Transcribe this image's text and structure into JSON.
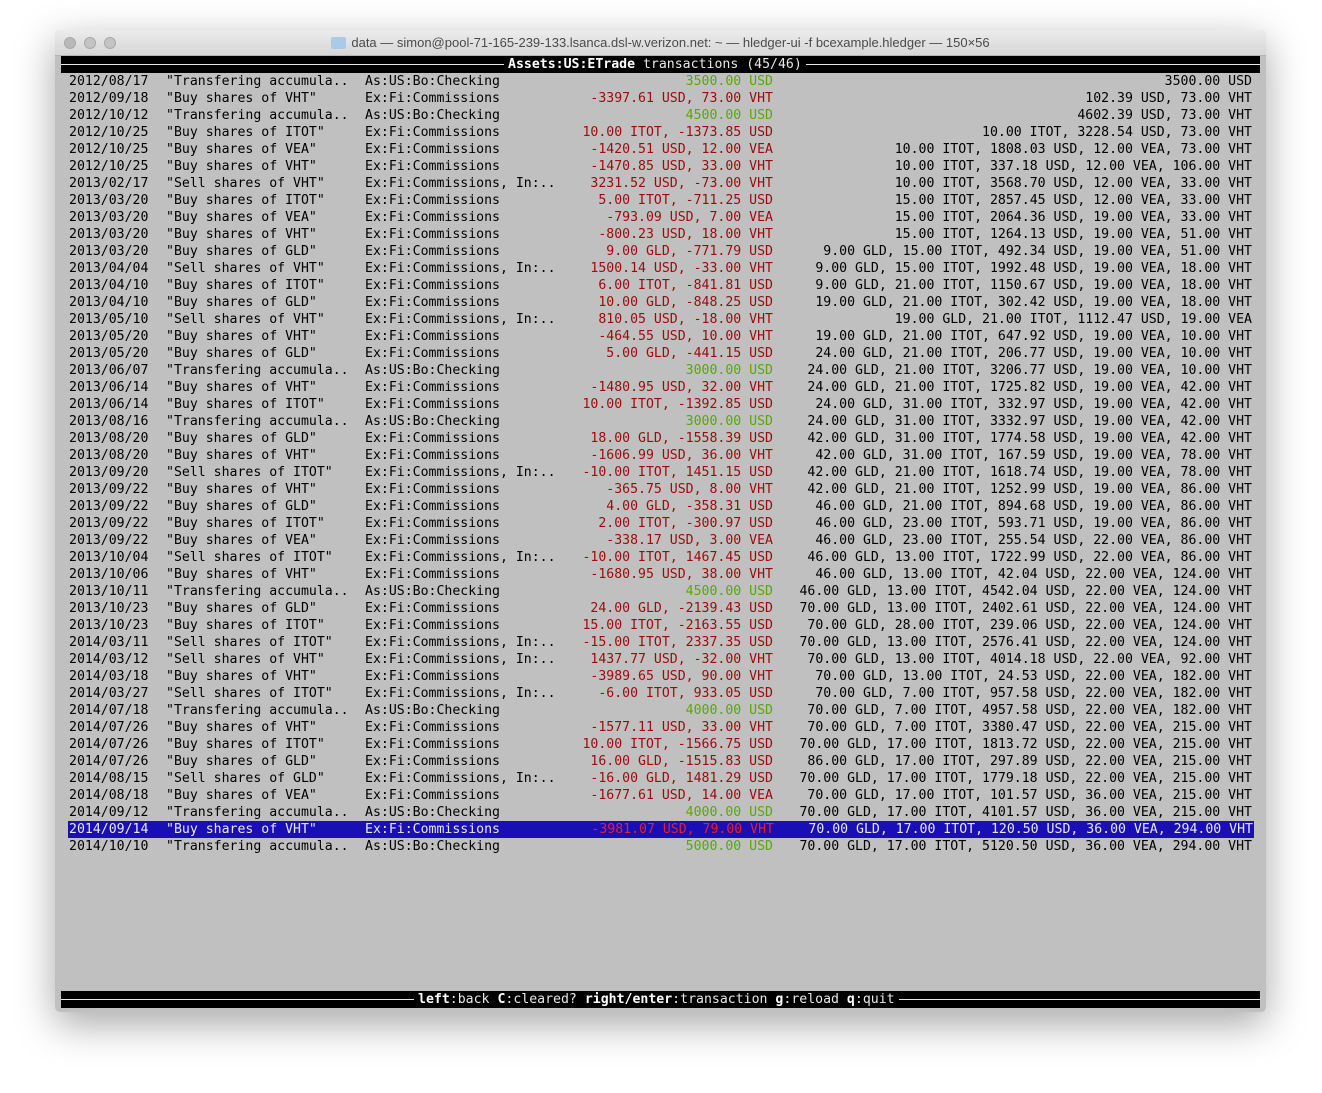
{
  "window": {
    "title": "data — simon@pool-71-165-239-133.lsanca.dsl-w.verizon.net: ~ — hledger-ui -f bcexample.hledger — 150×56"
  },
  "header": {
    "account": "Assets:US:ETrade",
    "rest": " transactions (45/46)"
  },
  "colors": {
    "negative": "#9c0a0a",
    "positive": "#5aa800",
    "selection": "#1a0fb4"
  },
  "selected_index": 44,
  "rows": [
    {
      "date": "2012/08/17",
      "desc": "\"Transfering accumula..",
      "acct": "As:US:Bo:Checking",
      "amt": "3500.00 USD",
      "sign": "green",
      "bal": "3500.00 USD"
    },
    {
      "date": "2012/09/18",
      "desc": "\"Buy shares of VHT\"",
      "acct": "Ex:Fi:Commissions",
      "amt": "-3397.61 USD, 73.00 VHT",
      "sign": "red",
      "bal": "102.39 USD, 73.00 VHT"
    },
    {
      "date": "2012/10/12",
      "desc": "\"Transfering accumula..",
      "acct": "As:US:Bo:Checking",
      "amt": "4500.00 USD",
      "sign": "green",
      "bal": "4602.39 USD, 73.00 VHT"
    },
    {
      "date": "2012/10/25",
      "desc": "\"Buy shares of ITOT\"",
      "acct": "Ex:Fi:Commissions",
      "amt": "10.00 ITOT, -1373.85 USD",
      "sign": "red",
      "bal": "10.00 ITOT, 3228.54 USD, 73.00 VHT"
    },
    {
      "date": "2012/10/25",
      "desc": "\"Buy shares of VEA\"",
      "acct": "Ex:Fi:Commissions",
      "amt": "-1420.51 USD, 12.00 VEA",
      "sign": "red",
      "bal": "10.00 ITOT, 1808.03 USD, 12.00 VEA, 73.00 VHT"
    },
    {
      "date": "2012/10/25",
      "desc": "\"Buy shares of VHT\"",
      "acct": "Ex:Fi:Commissions",
      "amt": "-1470.85 USD, 33.00 VHT",
      "sign": "red",
      "bal": "10.00 ITOT, 337.18 USD, 12.00 VEA, 106.00 VHT"
    },
    {
      "date": "2013/02/17",
      "desc": "\"Sell shares of VHT\"",
      "acct": "Ex:Fi:Commissions, In:..",
      "amt": "3231.52 USD, -73.00 VHT",
      "sign": "red",
      "bal": "10.00 ITOT, 3568.70 USD, 12.00 VEA, 33.00 VHT"
    },
    {
      "date": "2013/03/20",
      "desc": "\"Buy shares of ITOT\"",
      "acct": "Ex:Fi:Commissions",
      "amt": "5.00 ITOT, -711.25 USD",
      "sign": "red",
      "bal": "15.00 ITOT, 2857.45 USD, 12.00 VEA, 33.00 VHT"
    },
    {
      "date": "2013/03/20",
      "desc": "\"Buy shares of VEA\"",
      "acct": "Ex:Fi:Commissions",
      "amt": "-793.09 USD, 7.00 VEA",
      "sign": "red",
      "bal": "15.00 ITOT, 2064.36 USD, 19.00 VEA, 33.00 VHT"
    },
    {
      "date": "2013/03/20",
      "desc": "\"Buy shares of VHT\"",
      "acct": "Ex:Fi:Commissions",
      "amt": "-800.23 USD, 18.00 VHT",
      "sign": "red",
      "bal": "15.00 ITOT, 1264.13 USD, 19.00 VEA, 51.00 VHT"
    },
    {
      "date": "2013/03/20",
      "desc": "\"Buy shares of GLD\"",
      "acct": "Ex:Fi:Commissions",
      "amt": "9.00 GLD, -771.79 USD",
      "sign": "red",
      "bal": "9.00 GLD, 15.00 ITOT, 492.34 USD, 19.00 VEA, 51.00 VHT"
    },
    {
      "date": "2013/04/04",
      "desc": "\"Sell shares of VHT\"",
      "acct": "Ex:Fi:Commissions, In:..",
      "amt": "1500.14 USD, -33.00 VHT",
      "sign": "red",
      "bal": "9.00 GLD, 15.00 ITOT, 1992.48 USD, 19.00 VEA, 18.00 VHT"
    },
    {
      "date": "2013/04/10",
      "desc": "\"Buy shares of ITOT\"",
      "acct": "Ex:Fi:Commissions",
      "amt": "6.00 ITOT, -841.81 USD",
      "sign": "red",
      "bal": "9.00 GLD, 21.00 ITOT, 1150.67 USD, 19.00 VEA, 18.00 VHT"
    },
    {
      "date": "2013/04/10",
      "desc": "\"Buy shares of GLD\"",
      "acct": "Ex:Fi:Commissions",
      "amt": "10.00 GLD, -848.25 USD",
      "sign": "red",
      "bal": "19.00 GLD, 21.00 ITOT, 302.42 USD, 19.00 VEA, 18.00 VHT"
    },
    {
      "date": "2013/05/10",
      "desc": "\"Sell shares of VHT\"",
      "acct": "Ex:Fi:Commissions, In:..",
      "amt": "810.05 USD, -18.00 VHT",
      "sign": "red",
      "bal": "19.00 GLD, 21.00 ITOT, 1112.47 USD, 19.00 VEA"
    },
    {
      "date": "2013/05/20",
      "desc": "\"Buy shares of VHT\"",
      "acct": "Ex:Fi:Commissions",
      "amt": "-464.55 USD, 10.00 VHT",
      "sign": "red",
      "bal": "19.00 GLD, 21.00 ITOT, 647.92 USD, 19.00 VEA, 10.00 VHT"
    },
    {
      "date": "2013/05/20",
      "desc": "\"Buy shares of GLD\"",
      "acct": "Ex:Fi:Commissions",
      "amt": "5.00 GLD, -441.15 USD",
      "sign": "red",
      "bal": "24.00 GLD, 21.00 ITOT, 206.77 USD, 19.00 VEA, 10.00 VHT"
    },
    {
      "date": "2013/06/07",
      "desc": "\"Transfering accumula..",
      "acct": "As:US:Bo:Checking",
      "amt": "3000.00 USD",
      "sign": "green",
      "bal": "24.00 GLD, 21.00 ITOT, 3206.77 USD, 19.00 VEA, 10.00 VHT"
    },
    {
      "date": "2013/06/14",
      "desc": "\"Buy shares of VHT\"",
      "acct": "Ex:Fi:Commissions",
      "amt": "-1480.95 USD, 32.00 VHT",
      "sign": "red",
      "bal": "24.00 GLD, 21.00 ITOT, 1725.82 USD, 19.00 VEA, 42.00 VHT"
    },
    {
      "date": "2013/06/14",
      "desc": "\"Buy shares of ITOT\"",
      "acct": "Ex:Fi:Commissions",
      "amt": "10.00 ITOT, -1392.85 USD",
      "sign": "red",
      "bal": "24.00 GLD, 31.00 ITOT, 332.97 USD, 19.00 VEA, 42.00 VHT"
    },
    {
      "date": "2013/08/16",
      "desc": "\"Transfering accumula..",
      "acct": "As:US:Bo:Checking",
      "amt": "3000.00 USD",
      "sign": "green",
      "bal": "24.00 GLD, 31.00 ITOT, 3332.97 USD, 19.00 VEA, 42.00 VHT"
    },
    {
      "date": "2013/08/20",
      "desc": "\"Buy shares of GLD\"",
      "acct": "Ex:Fi:Commissions",
      "amt": "18.00 GLD, -1558.39 USD",
      "sign": "red",
      "bal": "42.00 GLD, 31.00 ITOT, 1774.58 USD, 19.00 VEA, 42.00 VHT"
    },
    {
      "date": "2013/08/20",
      "desc": "\"Buy shares of VHT\"",
      "acct": "Ex:Fi:Commissions",
      "amt": "-1606.99 USD, 36.00 VHT",
      "sign": "red",
      "bal": "42.00 GLD, 31.00 ITOT, 167.59 USD, 19.00 VEA, 78.00 VHT"
    },
    {
      "date": "2013/09/20",
      "desc": "\"Sell shares of ITOT\"",
      "acct": "Ex:Fi:Commissions, In:..",
      "amt": "-10.00 ITOT, 1451.15 USD",
      "sign": "red",
      "bal": "42.00 GLD, 21.00 ITOT, 1618.74 USD, 19.00 VEA, 78.00 VHT"
    },
    {
      "date": "2013/09/22",
      "desc": "\"Buy shares of VHT\"",
      "acct": "Ex:Fi:Commissions",
      "amt": "-365.75 USD, 8.00 VHT",
      "sign": "red",
      "bal": "42.00 GLD, 21.00 ITOT, 1252.99 USD, 19.00 VEA, 86.00 VHT"
    },
    {
      "date": "2013/09/22",
      "desc": "\"Buy shares of GLD\"",
      "acct": "Ex:Fi:Commissions",
      "amt": "4.00 GLD, -358.31 USD",
      "sign": "red",
      "bal": "46.00 GLD, 21.00 ITOT, 894.68 USD, 19.00 VEA, 86.00 VHT"
    },
    {
      "date": "2013/09/22",
      "desc": "\"Buy shares of ITOT\"",
      "acct": "Ex:Fi:Commissions",
      "amt": "2.00 ITOT, -300.97 USD",
      "sign": "red",
      "bal": "46.00 GLD, 23.00 ITOT, 593.71 USD, 19.00 VEA, 86.00 VHT"
    },
    {
      "date": "2013/09/22",
      "desc": "\"Buy shares of VEA\"",
      "acct": "Ex:Fi:Commissions",
      "amt": "-338.17 USD, 3.00 VEA",
      "sign": "red",
      "bal": "46.00 GLD, 23.00 ITOT, 255.54 USD, 22.00 VEA, 86.00 VHT"
    },
    {
      "date": "2013/10/04",
      "desc": "\"Sell shares of ITOT\"",
      "acct": "Ex:Fi:Commissions, In:..",
      "amt": "-10.00 ITOT, 1467.45 USD",
      "sign": "red",
      "bal": "46.00 GLD, 13.00 ITOT, 1722.99 USD, 22.00 VEA, 86.00 VHT"
    },
    {
      "date": "2013/10/06",
      "desc": "\"Buy shares of VHT\"",
      "acct": "Ex:Fi:Commissions",
      "amt": "-1680.95 USD, 38.00 VHT",
      "sign": "red",
      "bal": "46.00 GLD, 13.00 ITOT, 42.04 USD, 22.00 VEA, 124.00 VHT"
    },
    {
      "date": "2013/10/11",
      "desc": "\"Transfering accumula..",
      "acct": "As:US:Bo:Checking",
      "amt": "4500.00 USD",
      "sign": "green",
      "bal": "46.00 GLD, 13.00 ITOT, 4542.04 USD, 22.00 VEA, 124.00 VHT"
    },
    {
      "date": "2013/10/23",
      "desc": "\"Buy shares of GLD\"",
      "acct": "Ex:Fi:Commissions",
      "amt": "24.00 GLD, -2139.43 USD",
      "sign": "red",
      "bal": "70.00 GLD, 13.00 ITOT, 2402.61 USD, 22.00 VEA, 124.00 VHT"
    },
    {
      "date": "2013/10/23",
      "desc": "\"Buy shares of ITOT\"",
      "acct": "Ex:Fi:Commissions",
      "amt": "15.00 ITOT, -2163.55 USD",
      "sign": "red",
      "bal": "70.00 GLD, 28.00 ITOT, 239.06 USD, 22.00 VEA, 124.00 VHT"
    },
    {
      "date": "2014/03/11",
      "desc": "\"Sell shares of ITOT\"",
      "acct": "Ex:Fi:Commissions, In:..",
      "amt": "-15.00 ITOT, 2337.35 USD",
      "sign": "red",
      "bal": "70.00 GLD, 13.00 ITOT, 2576.41 USD, 22.00 VEA, 124.00 VHT"
    },
    {
      "date": "2014/03/12",
      "desc": "\"Sell shares of VHT\"",
      "acct": "Ex:Fi:Commissions, In:..",
      "amt": "1437.77 USD, -32.00 VHT",
      "sign": "red",
      "bal": "70.00 GLD, 13.00 ITOT, 4014.18 USD, 22.00 VEA, 92.00 VHT"
    },
    {
      "date": "2014/03/18",
      "desc": "\"Buy shares of VHT\"",
      "acct": "Ex:Fi:Commissions",
      "amt": "-3989.65 USD, 90.00 VHT",
      "sign": "red",
      "bal": "70.00 GLD, 13.00 ITOT, 24.53 USD, 22.00 VEA, 182.00 VHT"
    },
    {
      "date": "2014/03/27",
      "desc": "\"Sell shares of ITOT\"",
      "acct": "Ex:Fi:Commissions, In:..",
      "amt": "-6.00 ITOT, 933.05 USD",
      "sign": "red",
      "bal": "70.00 GLD, 7.00 ITOT, 957.58 USD, 22.00 VEA, 182.00 VHT"
    },
    {
      "date": "2014/07/18",
      "desc": "\"Transfering accumula..",
      "acct": "As:US:Bo:Checking",
      "amt": "4000.00 USD",
      "sign": "green",
      "bal": "70.00 GLD, 7.00 ITOT, 4957.58 USD, 22.00 VEA, 182.00 VHT"
    },
    {
      "date": "2014/07/26",
      "desc": "\"Buy shares of VHT\"",
      "acct": "Ex:Fi:Commissions",
      "amt": "-1577.11 USD, 33.00 VHT",
      "sign": "red",
      "bal": "70.00 GLD, 7.00 ITOT, 3380.47 USD, 22.00 VEA, 215.00 VHT"
    },
    {
      "date": "2014/07/26",
      "desc": "\"Buy shares of ITOT\"",
      "acct": "Ex:Fi:Commissions",
      "amt": "10.00 ITOT, -1566.75 USD",
      "sign": "red",
      "bal": "70.00 GLD, 17.00 ITOT, 1813.72 USD, 22.00 VEA, 215.00 VHT"
    },
    {
      "date": "2014/07/26",
      "desc": "\"Buy shares of GLD\"",
      "acct": "Ex:Fi:Commissions",
      "amt": "16.00 GLD, -1515.83 USD",
      "sign": "red",
      "bal": "86.00 GLD, 17.00 ITOT, 297.89 USD, 22.00 VEA, 215.00 VHT"
    },
    {
      "date": "2014/08/15",
      "desc": "\"Sell shares of GLD\"",
      "acct": "Ex:Fi:Commissions, In:..",
      "amt": "-16.00 GLD, 1481.29 USD",
      "sign": "red",
      "bal": "70.00 GLD, 17.00 ITOT, 1779.18 USD, 22.00 VEA, 215.00 VHT"
    },
    {
      "date": "2014/08/18",
      "desc": "\"Buy shares of VEA\"",
      "acct": "Ex:Fi:Commissions",
      "amt": "-1677.61 USD, 14.00 VEA",
      "sign": "red",
      "bal": "70.00 GLD, 17.00 ITOT, 101.57 USD, 36.00 VEA, 215.00 VHT"
    },
    {
      "date": "2014/09/12",
      "desc": "\"Transfering accumula..",
      "acct": "As:US:Bo:Checking",
      "amt": "4000.00 USD",
      "sign": "green",
      "bal": "70.00 GLD, 17.00 ITOT, 4101.57 USD, 36.00 VEA, 215.00 VHT"
    },
    {
      "date": "2014/09/14",
      "desc": "\"Buy shares of VHT\"",
      "acct": "Ex:Fi:Commissions",
      "amt": "-3981.07 USD, 79.00 VHT",
      "sign": "red",
      "bal": "70.00 GLD, 17.00 ITOT, 120.50 USD, 36.00 VEA, 294.00 VHT"
    },
    {
      "date": "2014/10/10",
      "desc": "\"Transfering accumula..",
      "acct": "As:US:Bo:Checking",
      "amt": "5000.00 USD",
      "sign": "green",
      "bal": "70.00 GLD, 17.00 ITOT, 5120.50 USD, 36.00 VEA, 294.00 VHT"
    }
  ],
  "footer": [
    {
      "key": "left",
      "desc": "back"
    },
    {
      "key": "C",
      "desc": "cleared?"
    },
    {
      "key": "right/enter",
      "desc": "transaction"
    },
    {
      "key": "g",
      "desc": "reload"
    },
    {
      "key": "q",
      "desc": "quit"
    }
  ]
}
